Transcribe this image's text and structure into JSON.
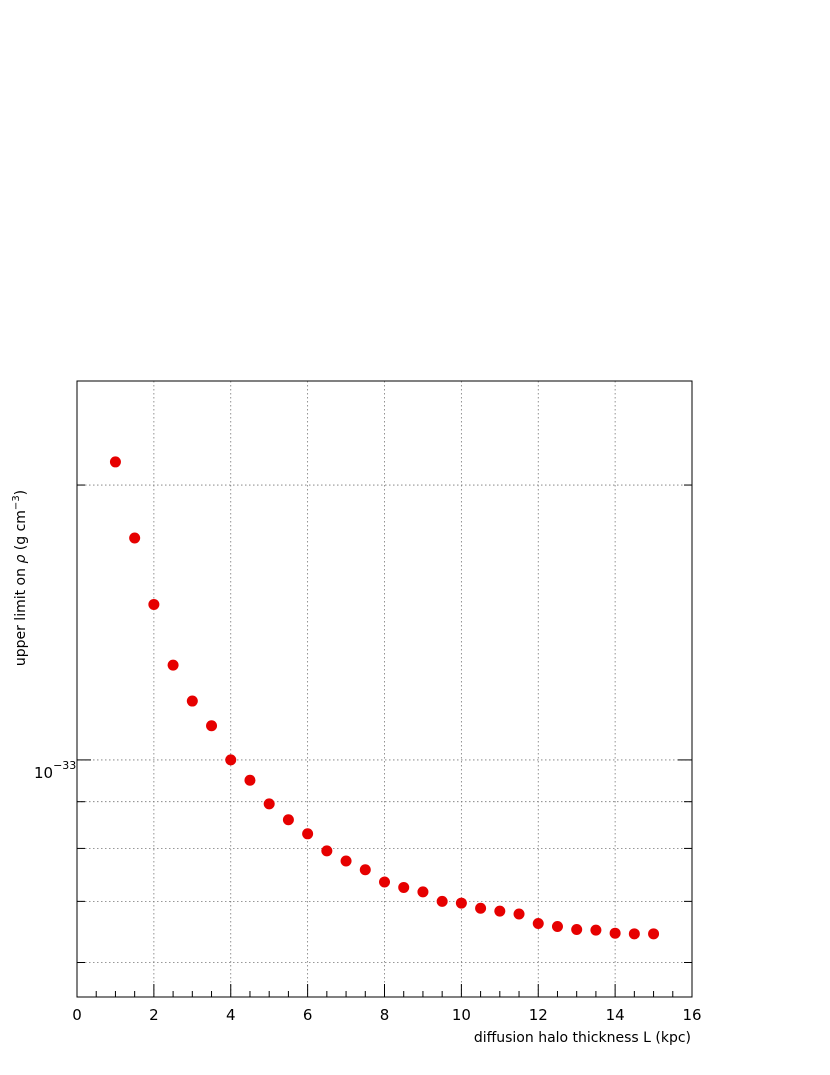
{
  "chart_data": {
    "type": "scatter",
    "title": "",
    "xlabel": "diffusion halo thickness L (kpc)",
    "ylabel_prefix": "upper limit on ",
    "ylabel_symbol": "ρ",
    "ylabel_unit_open": " (g cm",
    "ylabel_unit_exp": "−3",
    "ylabel_unit_close": ")",
    "x_ticks": [
      "0",
      "2",
      "4",
      "6",
      "8",
      "10",
      "12",
      "14",
      "16"
    ],
    "y_tick_base": "10",
    "y_tick_exp": "−33",
    "xlim": [
      0,
      16
    ],
    "ylim": [
      5.5e-34,
      2.6e-33
    ],
    "y_scale": "log",
    "grid": true,
    "marker_color": "#e60000",
    "series": [
      {
        "x": [
          1,
          1.5,
          2,
          2.5,
          3,
          3.5,
          4,
          4.5,
          5,
          5.5,
          6,
          6.5,
          7,
          7.5,
          8,
          8.5,
          9,
          9.5,
          10,
          10.5,
          11,
          11.5,
          12,
          12.5,
          13,
          13.5,
          14,
          14.5,
          15
        ],
        "y": [
          2.12e-33,
          1.75e-33,
          1.48e-33,
          1.27e-33,
          1.16e-33,
          1.09e-33,
          1e-33,
          9.5e-34,
          8.95e-34,
          8.6e-34,
          8.3e-34,
          7.95e-34,
          7.75e-34,
          7.58e-34,
          7.35e-34,
          7.25e-34,
          7.17e-34,
          7e-34,
          6.97e-34,
          6.88e-34,
          6.83e-34,
          6.78e-34,
          6.62e-34,
          6.57e-34,
          6.52e-34,
          6.51e-34,
          6.46e-34,
          6.45e-34,
          6.45e-34
        ]
      }
    ]
  }
}
